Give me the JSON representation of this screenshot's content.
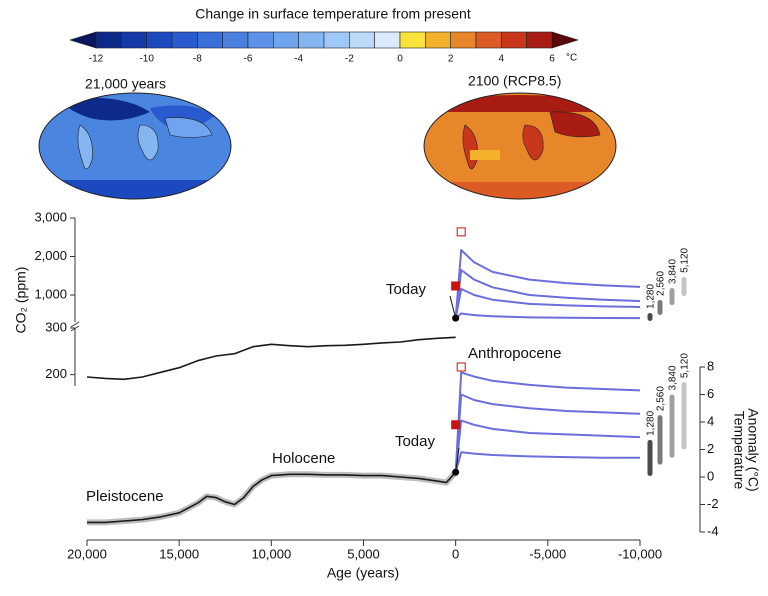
{
  "colorbar": {
    "title": "Change in surface temperature from present",
    "unit": "°C",
    "limits": [
      -12,
      6
    ],
    "ticks": [
      -12,
      -10,
      -8,
      -6,
      -4,
      -2,
      0,
      2,
      4,
      6
    ],
    "colors": [
      "#0d2a8a",
      "#1438a8",
      "#1c48c0",
      "#2a5ad0",
      "#3a6ed8",
      "#4a80e0",
      "#5c92e8",
      "#70a4ee",
      "#86b6f2",
      "#a0c8f6",
      "#bcdaf8",
      "#dbeafc",
      "#f9e23c",
      "#f3b12c",
      "#e8862a",
      "#dc5a24",
      "#c8361c",
      "#a81c14"
    ],
    "under": "#0a1660",
    "over": "#5a0808"
  },
  "maps": [
    {
      "label": "21,000 years"
    },
    {
      "label": "2100 (RCP8.5)"
    }
  ],
  "chart_data": [
    {
      "type": "line",
      "ylabel": "CO₂ (ppm)",
      "xlim": [
        20000,
        -10000
      ],
      "ylim": [
        150,
        3000
      ],
      "ybreak": 300,
      "yticks": [
        {
          "value": 3000,
          "label": "3,000"
        },
        {
          "value": 2000,
          "label": "2,000"
        },
        {
          "value": 1000,
          "label": "1,000"
        },
        300,
        200
      ],
      "series": [
        {
          "color": "#1a1a1a",
          "x": [
            20000,
            19000,
            18000,
            17000,
            16000,
            15000,
            14000,
            13000,
            12000,
            11000,
            10000,
            9000,
            8000,
            7000,
            6000,
            5000,
            4000,
            3000,
            2000,
            1000,
            0
          ],
          "values": [
            195,
            192,
            190,
            195,
            205,
            215,
            230,
            240,
            245,
            260,
            265,
            262,
            260,
            262,
            263,
            265,
            268,
            270,
            275,
            278,
            280
          ]
        },
        {
          "color": "#6b6fdc",
          "x": [
            0,
            -300,
            -1000,
            -2000,
            -4000,
            -6000,
            -8000,
            -10000
          ],
          "values": [
            400,
            2170,
            1850,
            1600,
            1400,
            1310,
            1250,
            1210
          ]
        },
        {
          "color": "#6b6fdc",
          "x": [
            0,
            -300,
            -1000,
            -2000,
            -4000,
            -6000,
            -8000,
            -10000
          ],
          "values": [
            400,
            1650,
            1400,
            1200,
            1000,
            930,
            880,
            845
          ]
        },
        {
          "color": "#6b6fdc",
          "x": [
            0,
            -300,
            -1000,
            -2000,
            -4000,
            -6000,
            -8000,
            -10000
          ],
          "values": [
            400,
            1160,
            1000,
            880,
            770,
            730,
            705,
            690
          ]
        },
        {
          "color": "#6b6fdc",
          "x": [
            0,
            -300,
            -1000,
            -2000,
            -4000,
            -6000,
            -8000,
            -10000
          ],
          "values": [
            400,
            520,
            480,
            450,
            420,
            410,
            405,
            400
          ]
        }
      ],
      "today": {
        "label": "Today",
        "x": 0,
        "value": 400
      },
      "markers": [
        {
          "x": 0,
          "value": 1235,
          "fill": "#cc1111"
        },
        {
          "x": -300,
          "value": 2640,
          "fill": "none"
        }
      ],
      "scenarios": [
        {
          "label": "1,280",
          "color": "#4a4a4a",
          "range": [
            326,
            534
          ]
        },
        {
          "label": "2,560",
          "color": "#7a7a7a",
          "range": [
            482,
            872
          ]
        },
        {
          "label": "3,840",
          "color": "#a0a0a0",
          "range": [
            740,
            1183
          ]
        },
        {
          "label": "5,120",
          "color": "#c4c4c4",
          "range": [
            975,
            1470
          ]
        }
      ]
    },
    {
      "type": "line",
      "ylabel": [
        "Temperature",
        "Anomaly (°C)"
      ],
      "xlabel": "Age (years)",
      "xlim": [
        20000,
        -10000
      ],
      "xticks": [
        {
          "value": 20000,
          "label": "20,000"
        },
        {
          "value": 15000,
          "label": "15,000"
        },
        {
          "value": 10000,
          "label": "10,000"
        },
        {
          "value": 5000,
          "label": "5,000"
        },
        0,
        {
          "value": -5000,
          "label": "-5,000"
        },
        {
          "value": -10000,
          "label": "-10,000"
        }
      ],
      "ylim": [
        -4,
        8
      ],
      "yticks": [
        -4,
        -2,
        0,
        2,
        4,
        6,
        8
      ],
      "series": [
        {
          "color": "#1a1a1a",
          "x": [
            20000,
            19000,
            18000,
            17000,
            16000,
            15000,
            14000,
            13500,
            13000,
            12500,
            12000,
            11500,
            11000,
            10500,
            10000,
            9000,
            8000,
            7000,
            6000,
            5000,
            4000,
            3000,
            2000,
            1000,
            500,
            0
          ],
          "values": [
            -3.3,
            -3.3,
            -3.2,
            -3.1,
            -2.9,
            -2.6,
            -1.9,
            -1.4,
            -1.5,
            -1.8,
            -2.0,
            -1.5,
            -0.7,
            -0.2,
            0.1,
            0.2,
            0.2,
            0.15,
            0.15,
            0.1,
            0.1,
            0.0,
            -0.1,
            -0.3,
            -0.4,
            0.35
          ]
        },
        {
          "color": "#6b6fdc",
          "x": [
            0,
            -300,
            -1000,
            -2000,
            -4000,
            -6000,
            -8000,
            -10000
          ],
          "values": [
            0.35,
            7.6,
            7.3,
            7.0,
            6.7,
            6.5,
            6.4,
            6.3
          ]
        },
        {
          "color": "#6b6fdc",
          "x": [
            0,
            -300,
            -1000,
            -2000,
            -4000,
            -6000,
            -8000,
            -10000
          ],
          "values": [
            0.35,
            6.0,
            5.6,
            5.3,
            5.0,
            4.8,
            4.7,
            4.6
          ]
        },
        {
          "color": "#6b6fdc",
          "x": [
            0,
            -300,
            -1000,
            -2000,
            -4000,
            -6000,
            -8000,
            -10000
          ],
          "values": [
            0.35,
            4.1,
            3.8,
            3.5,
            3.2,
            3.1,
            3.0,
            2.9
          ]
        },
        {
          "color": "#6b6fdc",
          "x": [
            0,
            -300,
            -1000,
            -2000,
            -4000,
            -6000,
            -8000,
            -10000
          ],
          "values": [
            0.35,
            1.8,
            1.7,
            1.6,
            1.5,
            1.45,
            1.4,
            1.4
          ]
        }
      ],
      "today": {
        "label": "Today",
        "x": 0,
        "value": 0.35
      },
      "markers": [
        {
          "x": 0,
          "value": 3.8,
          "fill": "#cc1111"
        },
        {
          "x": -300,
          "value": 8.0,
          "fill": "none"
        }
      ],
      "scenarios": [
        {
          "label": "1,280",
          "color": "#4a4a4a",
          "range": [
            0.07,
            2.7
          ]
        },
        {
          "label": "2,560",
          "color": "#7a7a7a",
          "range": [
            0.9,
            4.5
          ]
        },
        {
          "label": "3,840",
          "color": "#a0a0a0",
          "range": [
            1.4,
            6.0
          ]
        },
        {
          "label": "5,120",
          "color": "#c4c4c4",
          "range": [
            2.0,
            6.9
          ]
        }
      ],
      "labels": [
        "Anthropocene",
        "Holocene",
        "Pleistocene"
      ]
    }
  ]
}
